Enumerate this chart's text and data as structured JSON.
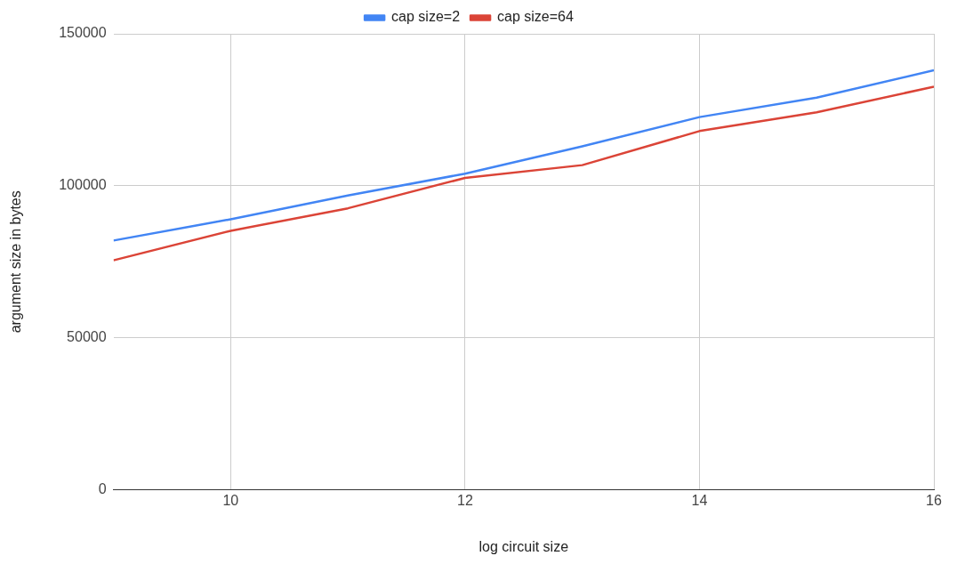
{
  "chart_data": {
    "type": "line",
    "xlabel": "log circuit size",
    "ylabel": "argument size in bytes",
    "x": [
      9,
      10,
      11,
      12,
      13,
      14,
      15,
      16
    ],
    "series": [
      {
        "name": "cap size=2",
        "color": "#4285f4",
        "values": [
          82000,
          89000,
          96800,
          104000,
          113000,
          122600,
          129000,
          138000
        ]
      },
      {
        "name": "cap size=64",
        "color": "#db4437",
        "values": [
          75500,
          85200,
          92600,
          102600,
          106800,
          118000,
          124200,
          132600
        ]
      }
    ],
    "xlim": [
      9,
      16
    ],
    "xticks": [
      10,
      12,
      14,
      16
    ],
    "ylim": [
      0,
      150000
    ],
    "yticks": [
      0,
      50000,
      100000,
      150000
    ],
    "grid": true,
    "legend": "top",
    "marker": "none",
    "line_style": "solid"
  }
}
